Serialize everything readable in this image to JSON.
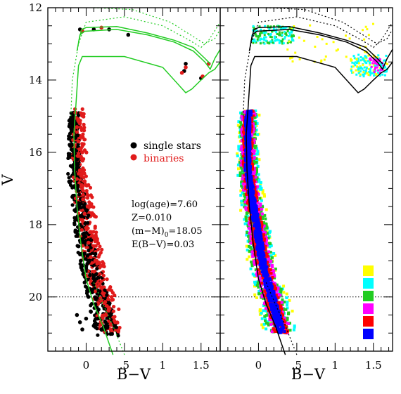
{
  "chart_data": [
    {
      "type": "scatter",
      "panel": "left",
      "xlabel": "B−V",
      "ylabel": "V",
      "xlim": [
        -0.5,
        1.75
      ],
      "ylim": [
        21.5,
        12
      ],
      "y_inverted": true,
      "xticks": [
        "0",
        ".5",
        "1",
        "1.5"
      ],
      "yticks": [
        "12",
        "14",
        "16",
        "18",
        "20"
      ],
      "legend": {
        "placement": "upper-middle-right",
        "entries": [
          {
            "label": "single stars",
            "color": "#000000"
          },
          {
            "label": "binaries",
            "color": "#e11b1b"
          }
        ]
      },
      "annotation_lines": [
        "log(age)=7.60",
        "Z=0.010",
        "(m−M)",
        "0",
        "=18.05",
        "E(B−V)=0.03"
      ],
      "reference_line": {
        "axis": "y",
        "value": 20,
        "style": "dotted"
      },
      "isochrone_color": "#22cc22",
      "isochrones": {
        "upper_solid": [
          [
            -0.12,
            13.2
          ],
          [
            -0.08,
            12.75
          ],
          [
            -0.02,
            12.65
          ],
          [
            0.4,
            12.6
          ],
          [
            0.8,
            12.75
          ],
          [
            1.15,
            12.95
          ],
          [
            1.4,
            13.2
          ],
          [
            1.55,
            13.5
          ],
          [
            1.62,
            13.7
          ],
          [
            1.68,
            13.4
          ],
          [
            1.75,
            13.15
          ]
        ],
        "lower_solid": [
          [
            -0.1,
            12.95
          ],
          [
            -0.06,
            12.6
          ],
          [
            0.0,
            12.55
          ],
          [
            0.4,
            12.52
          ],
          [
            0.8,
            12.7
          ],
          [
            1.15,
            12.9
          ],
          [
            1.4,
            13.1
          ],
          [
            1.55,
            13.4
          ],
          [
            1.62,
            13.55
          ]
        ],
        "bottom_loop": [
          [
            -0.14,
            14.9
          ],
          [
            -0.1,
            13.6
          ],
          [
            -0.05,
            13.35
          ],
          [
            0.5,
            13.35
          ],
          [
            1.0,
            13.65
          ],
          [
            1.3,
            14.35
          ],
          [
            1.38,
            14.25
          ],
          [
            1.5,
            14.0
          ],
          [
            1.6,
            13.8
          ],
          [
            1.68,
            13.7
          ],
          [
            1.75,
            13.5
          ]
        ],
        "main_sequence_solid": [
          [
            -0.14,
            14.9
          ],
          [
            -0.16,
            15.5
          ],
          [
            -0.15,
            16.5
          ],
          [
            -0.12,
            17.5
          ],
          [
            -0.07,
            18.5
          ],
          [
            0.0,
            19.5
          ],
          [
            0.1,
            20.2
          ],
          [
            0.22,
            20.8
          ],
          [
            0.35,
            21.6
          ]
        ],
        "dotted_1": [
          [
            -0.2,
            15.0
          ],
          [
            -0.18,
            14.0
          ],
          [
            -0.1,
            13.0
          ],
          [
            0.0,
            12.4
          ],
          [
            0.5,
            12.25
          ],
          [
            1.0,
            12.5
          ],
          [
            1.35,
            12.9
          ],
          [
            1.5,
            13.1
          ],
          [
            1.6,
            12.9
          ],
          [
            1.75,
            12.4
          ]
        ],
        "dotted_2": [
          [
            0.1,
            12.0
          ],
          [
            0.6,
            12.05
          ],
          [
            1.1,
            12.4
          ],
          [
            1.4,
            12.8
          ],
          [
            1.55,
            13.0
          ],
          [
            1.68,
            12.85
          ],
          [
            1.75,
            12.6
          ]
        ],
        "main_sequence_dotted": [
          [
            0.1,
            19.6
          ],
          [
            0.22,
            20.2
          ],
          [
            0.35,
            20.8
          ],
          [
            0.5,
            21.6
          ]
        ]
      },
      "series": [
        {
          "name": "single stars",
          "color": "#000000",
          "points": [
            [
              -0.17,
              15.0
            ],
            [
              -0.15,
              15.2
            ],
            [
              -0.18,
              15.4
            ],
            [
              -0.14,
              15.6
            ],
            [
              -0.19,
              15.8
            ],
            [
              -0.16,
              16.0
            ],
            [
              -0.12,
              16.2
            ],
            [
              -0.18,
              16.4
            ],
            [
              -0.15,
              16.6
            ],
            [
              -0.2,
              16.8
            ],
            [
              -0.13,
              17.0
            ],
            [
              -0.17,
              17.2
            ],
            [
              -0.1,
              17.4
            ],
            [
              -0.15,
              17.6
            ],
            [
              -0.12,
              17.8
            ],
            [
              -0.08,
              18.0
            ],
            [
              -0.14,
              18.2
            ],
            [
              -0.05,
              18.4
            ],
            [
              -0.1,
              18.6
            ],
            [
              -0.02,
              18.8
            ],
            [
              -0.07,
              19.0
            ],
            [
              0.0,
              19.2
            ],
            [
              0.05,
              19.4
            ],
            [
              -0.02,
              19.6
            ],
            [
              0.08,
              19.8
            ],
            [
              0.03,
              20.0
            ],
            [
              0.12,
              20.2
            ],
            [
              0.06,
              20.4
            ],
            [
              0.15,
              20.6
            ],
            [
              0.1,
              20.8
            ],
            [
              -0.12,
              20.5
            ],
            [
              -0.08,
              20.7
            ],
            [
              -0.05,
              20.9
            ],
            [
              0.0,
              20.6
            ],
            [
              0.2,
              20.9
            ],
            [
              -0.08,
              12.6
            ],
            [
              0.1,
              12.6
            ],
            [
              0.3,
              12.6
            ],
            [
              0.55,
              12.75
            ],
            [
              1.28,
              13.75
            ],
            [
              1.3,
              13.55
            ],
            [
              1.5,
              13.95
            ]
          ]
        },
        {
          "name": "binaries",
          "color": "#e11b1b",
          "points": [
            [
              -0.14,
              14.9
            ],
            [
              -0.12,
              15.3
            ],
            [
              -0.1,
              15.7
            ],
            [
              -0.11,
              16.1
            ],
            [
              -0.08,
              16.5
            ],
            [
              -0.06,
              16.9
            ],
            [
              -0.04,
              17.3
            ],
            [
              -0.02,
              17.7
            ],
            [
              0.0,
              18.1
            ],
            [
              0.03,
              18.5
            ],
            [
              0.06,
              18.9
            ],
            [
              0.1,
              19.3
            ],
            [
              0.15,
              19.7
            ],
            [
              0.2,
              20.1
            ],
            [
              0.26,
              20.5
            ],
            [
              0.32,
              20.9
            ],
            [
              0.38,
              20.7
            ],
            [
              0.42,
              20.95
            ],
            [
              0.3,
              20.3
            ],
            [
              0.22,
              19.9
            ],
            [
              -0.05,
              16.0
            ],
            [
              -0.02,
              16.8
            ],
            [
              0.02,
              17.5
            ],
            [
              0.08,
              18.3
            ],
            [
              0.12,
              19.0
            ],
            [
              -0.05,
              12.65
            ],
            [
              0.2,
              12.55
            ],
            [
              1.25,
              13.8
            ],
            [
              1.3,
              13.65
            ],
            [
              1.52,
              13.9
            ],
            [
              1.6,
              13.55
            ]
          ]
        }
      ]
    },
    {
      "type": "scatter",
      "panel": "right",
      "xlabel": "B−V",
      "xlim": [
        -0.5,
        1.75
      ],
      "ylim": [
        21.5,
        12
      ],
      "y_inverted": true,
      "xticks": [
        "0",
        ".5",
        "1",
        "1.5"
      ],
      "reference_line": {
        "axis": "y",
        "value": 20,
        "style": "dotted"
      },
      "isochrone_color": "#000000",
      "legend_swatches": [
        "#ffff00",
        "#00ffff",
        "#22cc22",
        "#ff00ff",
        "#ff0000",
        "#0000ff"
      ],
      "density_colors_description": "color-coded synthetic population density"
    }
  ]
}
